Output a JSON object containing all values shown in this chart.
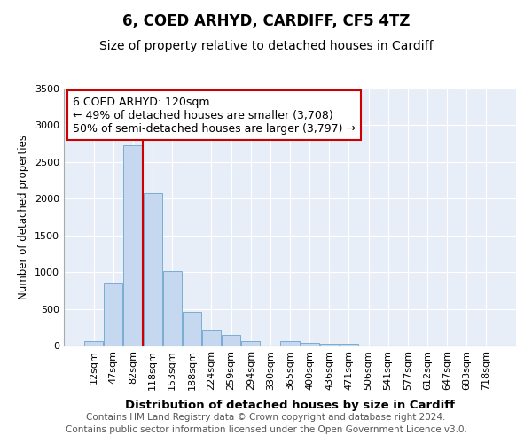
{
  "title1": "6, COED ARHYD, CARDIFF, CF5 4TZ",
  "title2": "Size of property relative to detached houses in Cardiff",
  "xlabel": "Distribution of detached houses by size in Cardiff",
  "ylabel": "Number of detached properties",
  "categories": [
    "12sqm",
    "47sqm",
    "82sqm",
    "118sqm",
    "153sqm",
    "188sqm",
    "224sqm",
    "259sqm",
    "294sqm",
    "330sqm",
    "365sqm",
    "400sqm",
    "436sqm",
    "471sqm",
    "506sqm",
    "541sqm",
    "577sqm",
    "612sqm",
    "647sqm",
    "683sqm",
    "718sqm"
  ],
  "values": [
    60,
    855,
    2730,
    2080,
    1010,
    455,
    200,
    150,
    65,
    0,
    55,
    42,
    30,
    25,
    0,
    0,
    0,
    0,
    0,
    0,
    0
  ],
  "bar_color": "#c5d8f0",
  "bar_edge_color": "#7aadd4",
  "bar_linewidth": 0.7,
  "vline_index": 2.5,
  "annotation_text": "6 COED ARHYD: 120sqm\n← 49% of detached houses are smaller (3,708)\n50% of semi-detached houses are larger (3,797) →",
  "annotation_box_facecolor": "#ffffff",
  "annotation_box_edgecolor": "#cc0000",
  "vline_color": "#cc0000",
  "ylim": [
    0,
    3500
  ],
  "yticks": [
    0,
    500,
    1000,
    1500,
    2000,
    2500,
    3000,
    3500
  ],
  "fig_facecolor": "#ffffff",
  "plot_facecolor": "#e8eef8",
  "grid_color": "#ffffff",
  "footnote": "Contains HM Land Registry data © Crown copyright and database right 2024.\nContains public sector information licensed under the Open Government Licence v3.0.",
  "title1_fontsize": 12,
  "title2_fontsize": 10,
  "xlabel_fontsize": 9.5,
  "ylabel_fontsize": 8.5,
  "tick_fontsize": 8,
  "annot_fontsize": 9,
  "footnote_fontsize": 7.5
}
